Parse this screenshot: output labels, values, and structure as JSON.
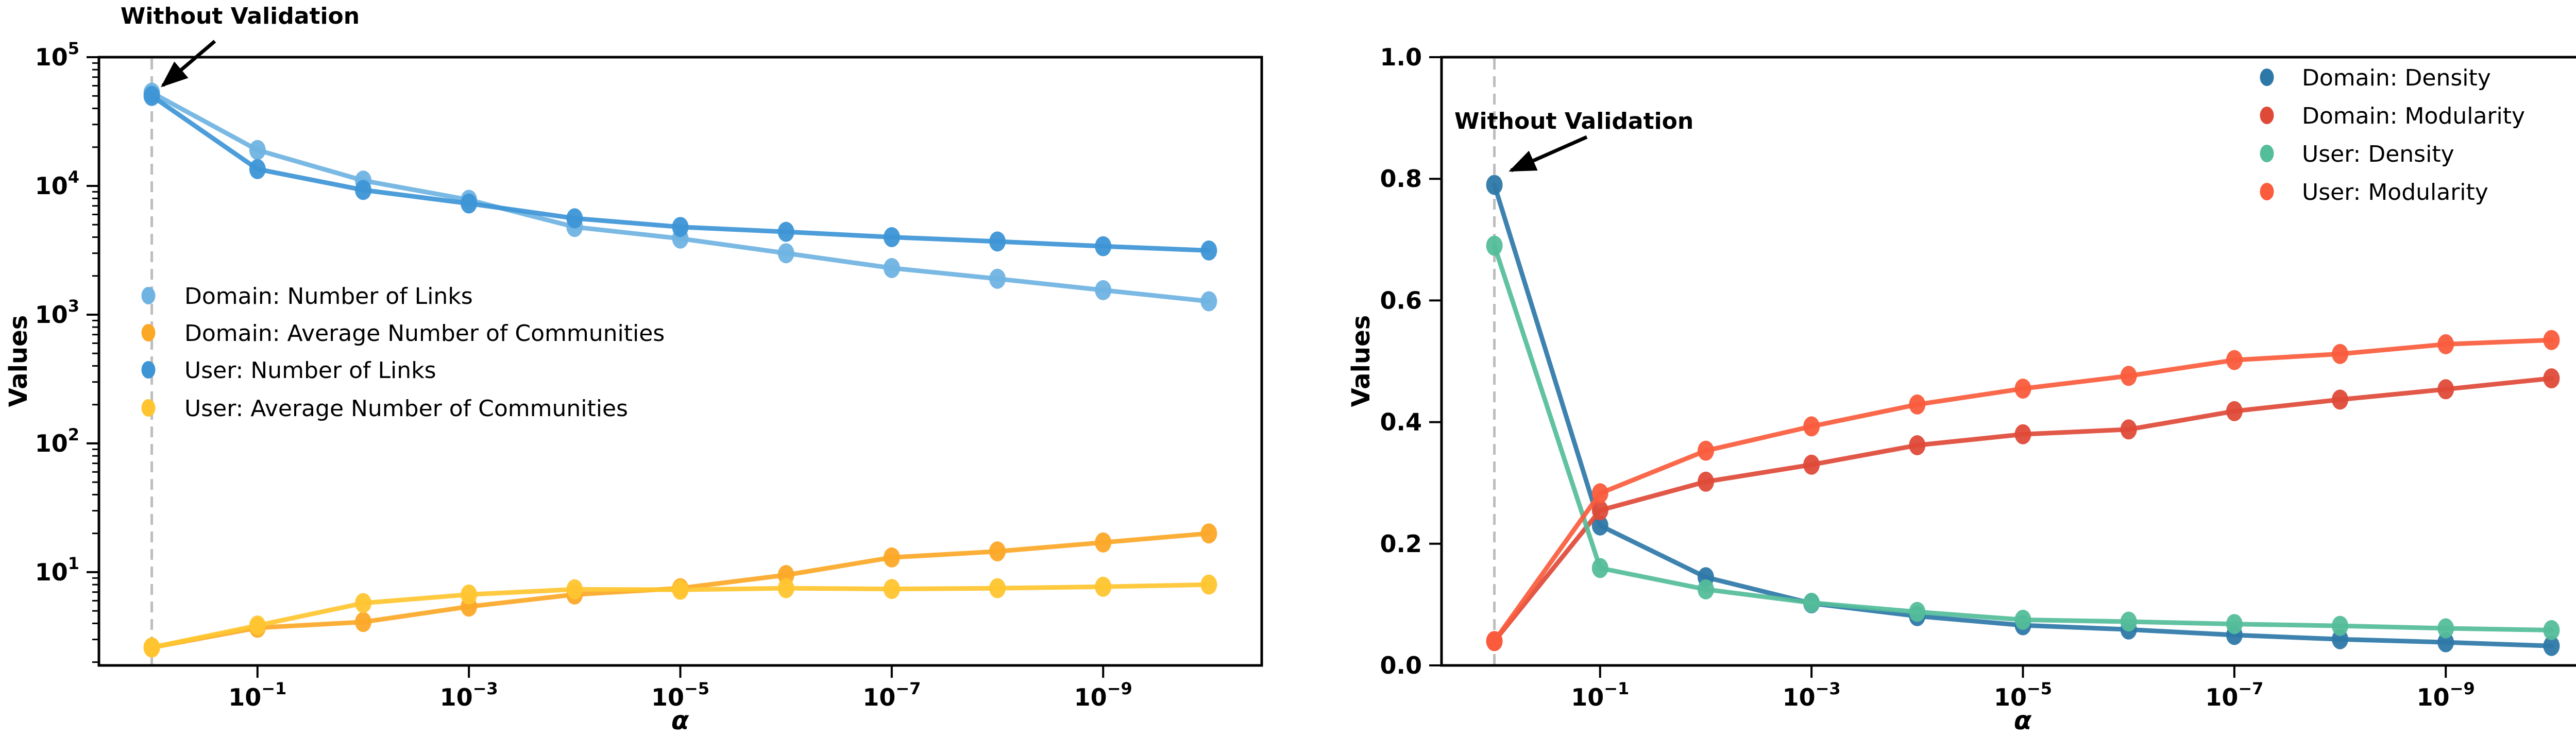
{
  "figure": {
    "background": "#ffffff",
    "annotation_text": "Without Validation",
    "xlabel": "α",
    "ylabel": "Values"
  },
  "chart_data": [
    {
      "type": "line",
      "panel": "left",
      "xscale": "log",
      "yscale": "log",
      "xlabel": "α",
      "ylabel": "Values",
      "title": "",
      "x": [
        1,
        0.1,
        0.01,
        0.001,
        0.0001,
        1e-05,
        1e-06,
        1e-07,
        1e-08,
        1e-09,
        1e-10
      ],
      "xlim_exp": [
        0.5,
        -10.5
      ],
      "ylim_exp": [
        5.0,
        0.2756
      ],
      "x_major_tick_exps": [
        -1,
        -3,
        -5,
        -7,
        -9
      ],
      "y_major_tick_exps": [
        5,
        4,
        3,
        2,
        1
      ],
      "grid": false,
      "legend_position": "center left",
      "vline_at_x": 1,
      "vline_color": "#bdbdbd",
      "annotation": "Without Validation",
      "series": [
        {
          "name": "Domain: Number of Links",
          "color": "#6fb3e2",
          "values": [
            53000,
            19000,
            11000,
            7800,
            4800,
            3900,
            3000,
            2300,
            1900,
            1550,
            1270
          ]
        },
        {
          "name": "Domain: Average Number of Communities",
          "color": "#fca827",
          "values": [
            2.6,
            3.7,
            4.1,
            5.4,
            6.7,
            7.5,
            9.5,
            13.0,
            14.5,
            17.0,
            20.0
          ]
        },
        {
          "name": "User: Number of Links",
          "color": "#3d95d6",
          "values": [
            50000,
            13500,
            9300,
            7300,
            5600,
            4800,
            4400,
            4000,
            3700,
            3400,
            3150
          ]
        },
        {
          "name": "User: Average Number of Communities",
          "color": "#ffc530",
          "values": [
            2.6,
            3.85,
            5.75,
            6.7,
            7.35,
            7.3,
            7.5,
            7.4,
            7.5,
            7.7,
            8.0
          ]
        }
      ]
    },
    {
      "type": "line",
      "panel": "right",
      "xscale": "log",
      "yscale": "linear",
      "xlabel": "α",
      "ylabel": "Values",
      "title": "",
      "x": [
        1,
        0.1,
        0.01,
        0.001,
        0.0001,
        1e-05,
        1e-06,
        1e-07,
        1e-08,
        1e-09,
        1e-10
      ],
      "xlim_exp": [
        0.5,
        -10.5
      ],
      "ylim": [
        0.0,
        1.0
      ],
      "x_major_tick_exps": [
        -1,
        -3,
        -5,
        -7,
        -9
      ],
      "y_major_ticks": [
        "0.0",
        "0.2",
        "0.4",
        "0.6",
        "0.8",
        "1.0"
      ],
      "grid": false,
      "legend_position": "upper right",
      "vline_at_x": 1,
      "vline_color": "#bdbdbd",
      "annotation": "Without Validation",
      "series": [
        {
          "name": "Domain: Density",
          "color": "#2e78a8",
          "values": [
            0.79,
            0.23,
            0.145,
            0.102,
            0.081,
            0.066,
            0.059,
            0.05,
            0.043,
            0.038,
            0.032
          ]
        },
        {
          "name": "Domain: Modularity",
          "color": "#df4a38",
          "values": [
            0.04,
            0.255,
            0.302,
            0.33,
            0.362,
            0.38,
            0.388,
            0.418,
            0.437,
            0.454,
            0.472
          ]
        },
        {
          "name": "User: Density",
          "color": "#54bd9a",
          "values": [
            0.69,
            0.16,
            0.125,
            0.103,
            0.088,
            0.075,
            0.072,
            0.068,
            0.065,
            0.061,
            0.058
          ]
        },
        {
          "name": "User: Modularity",
          "color": "#fa5c3c",
          "values": [
            0.04,
            0.283,
            0.353,
            0.393,
            0.429,
            0.455,
            0.476,
            0.502,
            0.512,
            0.528,
            0.535
          ]
        }
      ]
    }
  ]
}
